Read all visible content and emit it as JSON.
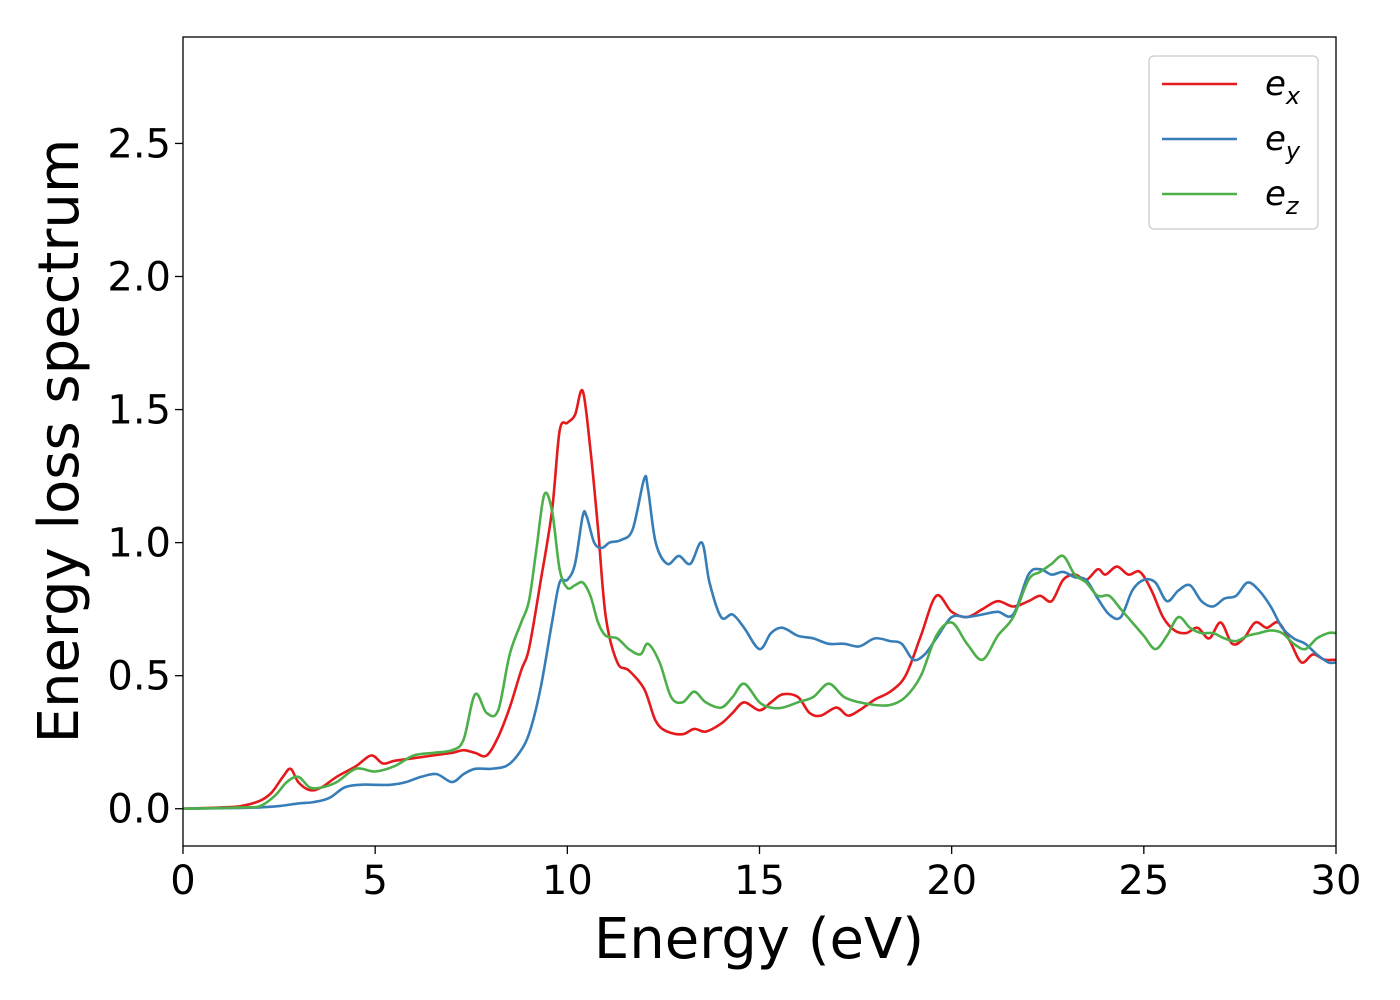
{
  "chart_data": {
    "type": "line",
    "title": "",
    "xlabel": "Energy (eV)",
    "ylabel": "Energy loss spectrum",
    "xlim": [
      0,
      30
    ],
    "ylim": [
      -0.14,
      2.9
    ],
    "xticks": [
      "0",
      "5",
      "10",
      "15",
      "20",
      "25",
      "30"
    ],
    "xtick_values": [
      0,
      5,
      10,
      15,
      20,
      25,
      30
    ],
    "yticks": [
      "0.0",
      "0.5",
      "1.0",
      "1.5",
      "2.0",
      "2.5"
    ],
    "ytick_values": [
      0,
      0.5,
      1.0,
      1.5,
      2.0,
      2.5
    ],
    "grid": false,
    "legend_position": "top-right",
    "series": [
      {
        "name": "e_x",
        "label_base": "e",
        "label_sub": "x",
        "color": "#e41a1c",
        "x": [
          0,
          1,
          1.5,
          2,
          2.3,
          2.6,
          2.8,
          3.0,
          3.3,
          3.6,
          4.0,
          4.5,
          4.9,
          5.2,
          5.5,
          6.0,
          6.5,
          7.0,
          7.3,
          7.6,
          7.9,
          8.2,
          8.5,
          8.8,
          9.0,
          9.3,
          9.6,
          9.8,
          10.0,
          10.2,
          10.4,
          10.6,
          10.8,
          11.0,
          11.3,
          11.6,
          12.0,
          12.3,
          12.6,
          13.0,
          13.3,
          13.6,
          14.0,
          14.3,
          14.6,
          15.0,
          15.3,
          15.6,
          16.0,
          16.3,
          16.6,
          17.0,
          17.3,
          17.6,
          18.0,
          18.4,
          18.8,
          19.2,
          19.6,
          20.0,
          20.4,
          20.8,
          21.2,
          21.6,
          22.0,
          22.3,
          22.6,
          22.9,
          23.2,
          23.5,
          23.8,
          24.0,
          24.3,
          24.6,
          24.9,
          25.2,
          25.5,
          25.8,
          26.1,
          26.4,
          26.7,
          27.0,
          27.3,
          27.6,
          27.9,
          28.2,
          28.5,
          28.8,
          29.1,
          29.4,
          29.7,
          30
        ],
        "y": [
          0,
          0.005,
          0.01,
          0.03,
          0.06,
          0.12,
          0.15,
          0.1,
          0.07,
          0.08,
          0.12,
          0.16,
          0.2,
          0.17,
          0.18,
          0.19,
          0.2,
          0.21,
          0.22,
          0.21,
          0.2,
          0.27,
          0.38,
          0.52,
          0.6,
          0.85,
          1.12,
          1.42,
          1.45,
          1.48,
          1.57,
          1.35,
          1.05,
          0.72,
          0.55,
          0.52,
          0.45,
          0.33,
          0.29,
          0.28,
          0.3,
          0.29,
          0.32,
          0.36,
          0.4,
          0.37,
          0.4,
          0.43,
          0.42,
          0.36,
          0.35,
          0.38,
          0.35,
          0.37,
          0.41,
          0.44,
          0.5,
          0.65,
          0.8,
          0.74,
          0.72,
          0.75,
          0.78,
          0.76,
          0.78,
          0.8,
          0.78,
          0.86,
          0.88,
          0.86,
          0.9,
          0.88,
          0.91,
          0.88,
          0.89,
          0.82,
          0.72,
          0.67,
          0.66,
          0.68,
          0.64,
          0.7,
          0.62,
          0.64,
          0.7,
          0.68,
          0.7,
          0.63,
          0.55,
          0.58,
          0.56,
          0.56
        ]
      },
      {
        "name": "e_y",
        "label_base": "e",
        "label_sub": "y",
        "color": "#377eb8",
        "x": [
          0,
          1.5,
          2.0,
          2.5,
          3.0,
          3.4,
          3.8,
          4.2,
          4.6,
          5.0,
          5.4,
          5.8,
          6.2,
          6.6,
          7.0,
          7.3,
          7.6,
          8.0,
          8.4,
          8.7,
          9.0,
          9.3,
          9.6,
          9.8,
          10.0,
          10.2,
          10.4,
          10.5,
          10.7,
          10.9,
          11.1,
          11.4,
          11.7,
          12.0,
          12.1,
          12.3,
          12.6,
          12.9,
          13.2,
          13.5,
          13.7,
          14.0,
          14.3,
          14.6,
          15.0,
          15.3,
          15.6,
          16.0,
          16.4,
          16.8,
          17.2,
          17.6,
          18.0,
          18.4,
          18.7,
          19.0,
          19.3,
          19.6,
          20.0,
          20.4,
          20.8,
          21.2,
          21.6,
          22.0,
          22.3,
          22.6,
          22.9,
          23.2,
          23.5,
          23.8,
          24.1,
          24.4,
          24.7,
          25.0,
          25.3,
          25.6,
          25.9,
          26.2,
          26.5,
          26.8,
          27.1,
          27.4,
          27.7,
          28.0,
          28.3,
          28.6,
          28.9,
          29.2,
          29.5,
          29.8,
          30
        ],
        "y": [
          0,
          0.003,
          0.005,
          0.01,
          0.02,
          0.025,
          0.04,
          0.08,
          0.09,
          0.09,
          0.09,
          0.1,
          0.12,
          0.13,
          0.1,
          0.13,
          0.15,
          0.15,
          0.16,
          0.2,
          0.28,
          0.45,
          0.7,
          0.85,
          0.86,
          0.92,
          1.1,
          1.1,
          1.0,
          0.98,
          1.0,
          1.01,
          1.05,
          1.24,
          1.2,
          1.0,
          0.92,
          0.95,
          0.92,
          1.0,
          0.85,
          0.72,
          0.73,
          0.68,
          0.6,
          0.66,
          0.68,
          0.65,
          0.64,
          0.62,
          0.62,
          0.61,
          0.64,
          0.63,
          0.62,
          0.56,
          0.58,
          0.64,
          0.72,
          0.72,
          0.73,
          0.74,
          0.73,
          0.88,
          0.9,
          0.88,
          0.89,
          0.87,
          0.86,
          0.79,
          0.73,
          0.72,
          0.82,
          0.86,
          0.85,
          0.78,
          0.82,
          0.84,
          0.78,
          0.76,
          0.79,
          0.8,
          0.85,
          0.82,
          0.76,
          0.68,
          0.64,
          0.62,
          0.58,
          0.55,
          0.55
        ]
      },
      {
        "name": "e_z",
        "label_base": "e",
        "label_sub": "z",
        "color": "#4daf4a",
        "x": [
          0,
          1.5,
          2.0,
          2.4,
          2.7,
          3.0,
          3.3,
          3.6,
          4.0,
          4.5,
          5.0,
          5.5,
          6.0,
          6.5,
          7.0,
          7.3,
          7.6,
          7.9,
          8.2,
          8.5,
          8.8,
          9.0,
          9.2,
          9.4,
          9.6,
          9.8,
          10.0,
          10.2,
          10.4,
          10.6,
          10.8,
          11.0,
          11.3,
          11.6,
          11.9,
          12.1,
          12.4,
          12.7,
          13.0,
          13.3,
          13.6,
          14.0,
          14.3,
          14.6,
          15.0,
          15.3,
          15.6,
          16.0,
          16.4,
          16.8,
          17.2,
          17.6,
          18.0,
          18.4,
          18.8,
          19.2,
          19.6,
          20.0,
          20.4,
          20.8,
          21.2,
          21.6,
          22.0,
          22.3,
          22.6,
          22.9,
          23.2,
          23.5,
          23.8,
          24.1,
          24.4,
          24.7,
          25.0,
          25.3,
          25.6,
          25.9,
          26.2,
          26.5,
          26.8,
          27.1,
          27.4,
          27.7,
          28.0,
          28.3,
          28.6,
          28.9,
          29.2,
          29.5,
          29.8,
          30
        ],
        "y": [
          0,
          0.005,
          0.01,
          0.05,
          0.1,
          0.12,
          0.08,
          0.08,
          0.1,
          0.15,
          0.14,
          0.16,
          0.2,
          0.21,
          0.22,
          0.26,
          0.43,
          0.36,
          0.37,
          0.58,
          0.7,
          0.78,
          0.98,
          1.18,
          1.12,
          0.9,
          0.83,
          0.84,
          0.85,
          0.8,
          0.7,
          0.65,
          0.64,
          0.6,
          0.58,
          0.62,
          0.55,
          0.42,
          0.4,
          0.44,
          0.4,
          0.38,
          0.42,
          0.47,
          0.4,
          0.38,
          0.38,
          0.4,
          0.42,
          0.47,
          0.42,
          0.4,
          0.39,
          0.39,
          0.42,
          0.5,
          0.65,
          0.7,
          0.62,
          0.56,
          0.65,
          0.72,
          0.86,
          0.89,
          0.92,
          0.95,
          0.88,
          0.85,
          0.8,
          0.8,
          0.75,
          0.7,
          0.65,
          0.6,
          0.65,
          0.72,
          0.68,
          0.66,
          0.66,
          0.64,
          0.63,
          0.65,
          0.66,
          0.67,
          0.66,
          0.62,
          0.6,
          0.64,
          0.66,
          0.66
        ]
      }
    ]
  }
}
